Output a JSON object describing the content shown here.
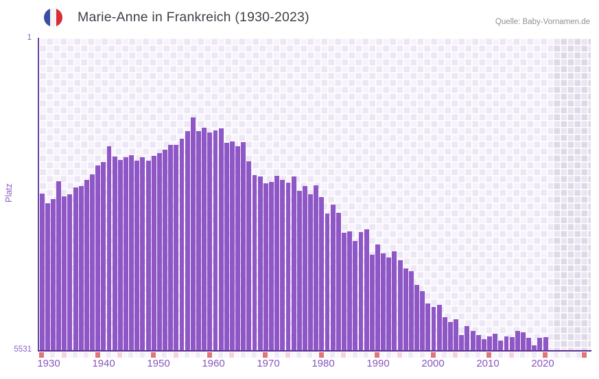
{
  "header": {
    "title": "Marie-Anne in Frankreich (1930-2023)",
    "source": "Quelle: Baby-Vornamen.de",
    "flag_icon": "france-flag-circle"
  },
  "colors": {
    "bar": "#8e57c5",
    "axis_line": "#5c2f91",
    "axis_text": "#8a5fc2",
    "x_tick_text": "#8756bd",
    "title_text": "#3e3e48",
    "source_text": "#8f8f98",
    "plot_bg_light": "#f7f3fc",
    "plot_bg_dark": "#ece6f5",
    "no_data_bg": "#ded8e7",
    "strip_decade": "#e0757a",
    "strip_mid": "#f3d3dc",
    "strip_pale_a": "#efeaf6",
    "strip_pale_b": "#faf8fd",
    "flag_blue": "#3a4da0",
    "flag_red": "#da2c35"
  },
  "chart_data": {
    "type": "bar",
    "title": "Marie-Anne in Frankreich (1930-2023)",
    "xlabel": "",
    "ylabel": "Platz",
    "y_axis_inverted": true,
    "y_top_label": "1",
    "y_bottom_label": "5531",
    "ylim": [
      1,
      5531
    ],
    "x_range": [
      1930,
      2023
    ],
    "x_tick_labels": [
      "1930",
      "1940",
      "1950",
      "1960",
      "1970",
      "1980",
      "1990",
      "2000",
      "2010",
      "2020"
    ],
    "grid": true,
    "legend": false,
    "no_data_years": [
      2021,
      2022,
      2023
    ],
    "years": [
      1930,
      1931,
      1932,
      1933,
      1934,
      1935,
      1936,
      1937,
      1938,
      1939,
      1940,
      1941,
      1942,
      1943,
      1944,
      1945,
      1946,
      1947,
      1948,
      1949,
      1950,
      1951,
      1952,
      1953,
      1954,
      1955,
      1956,
      1957,
      1958,
      1959,
      1960,
      1961,
      1962,
      1963,
      1964,
      1965,
      1966,
      1967,
      1968,
      1969,
      1970,
      1971,
      1972,
      1973,
      1974,
      1975,
      1976,
      1977,
      1978,
      1979,
      1980,
      1981,
      1982,
      1983,
      1984,
      1985,
      1986,
      1987,
      1988,
      1989,
      1990,
      1991,
      1992,
      1993,
      1994,
      1995,
      1996,
      1997,
      1998,
      1999,
      2000,
      2001,
      2002,
      2003,
      2004,
      2005,
      2006,
      2007,
      2008,
      2009,
      2010,
      2011,
      2012,
      2013,
      2014,
      2015,
      2016,
      2017,
      2018,
      2019,
      2020
    ],
    "ranks": [
      2760,
      2930,
      2857,
      2541,
      2808,
      2772,
      2650,
      2626,
      2517,
      2419,
      2261,
      2201,
      1921,
      2103,
      2164,
      2115,
      2079,
      2176,
      2115,
      2176,
      2091,
      2042,
      1982,
      1897,
      1897,
      1787,
      1654,
      1411,
      1654,
      1593,
      1678,
      1642,
      1605,
      1860,
      1836,
      1921,
      1848,
      2188,
      2431,
      2456,
      2577,
      2553,
      2443,
      2517,
      2565,
      2456,
      2711,
      2626,
      2772,
      2614,
      2820,
      3112,
      2954,
      3100,
      3452,
      3428,
      3598,
      3440,
      3391,
      3841,
      3659,
      3817,
      3890,
      3780,
      3938,
      4084,
      4133,
      4376,
      4485,
      4704,
      4765,
      4728,
      4947,
      5032,
      4984,
      5263,
      5105,
      5190,
      5263,
      5336,
      5287,
      5239,
      5360,
      5287,
      5299,
      5190,
      5215,
      5311,
      5445,
      5311,
      5299
    ]
  }
}
